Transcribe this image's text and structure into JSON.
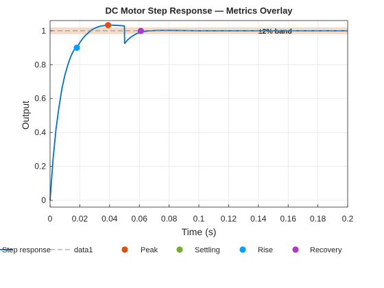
{
  "chart_data": {
    "type": "line",
    "title": "DC Motor Step Response — Metrics Overlay",
    "xlabel": "Time (s)",
    "ylabel": "Output",
    "xlim": [
      0,
      0.2
    ],
    "ylim": [
      -0.04,
      1.06
    ],
    "x_ticks": [
      0,
      0.02,
      0.04,
      0.06,
      0.08,
      0.1,
      0.12,
      0.14,
      0.16,
      0.18,
      0.2
    ],
    "x_tick_labels": [
      "0",
      "0.02",
      "0.04",
      "0.06",
      "0.08",
      "0.1",
      "0.12",
      "0.14",
      "0.16",
      "0.18",
      "0.2"
    ],
    "y_ticks": [
      0,
      0.2,
      0.4,
      0.6,
      0.8,
      1
    ],
    "y_tick_labels": [
      "0",
      "0.2",
      "0.4",
      "0.6",
      "0.8",
      "1"
    ],
    "grid": true,
    "legend_placement": "bottom",
    "band": {
      "label": "±2% band",
      "lower": 0.98,
      "upper": 1.02,
      "color": "#f2d3bf",
      "label_x": 0.14,
      "label_color": "#d95319"
    },
    "series": [
      {
        "name": "Step response",
        "color": "#0072bd",
        "style": "solid",
        "x": [
          0,
          0.002,
          0.004,
          0.006,
          0.008,
          0.01,
          0.012,
          0.014,
          0.016,
          0.018,
          0.02,
          0.022,
          0.024,
          0.026,
          0.028,
          0.03,
          0.032,
          0.034,
          0.036,
          0.038,
          0.04,
          0.042,
          0.044,
          0.046,
          0.048,
          0.05,
          0.0501,
          0.052,
          0.054,
          0.056,
          0.058,
          0.06,
          0.062,
          0.064,
          0.066,
          0.068,
          0.07,
          0.075,
          0.08,
          0.09,
          0.1,
          0.12,
          0.14,
          0.16,
          0.18,
          0.2
        ],
        "y": [
          0,
          0.24,
          0.42,
          0.55,
          0.66,
          0.74,
          0.8,
          0.85,
          0.885,
          0.9,
          0.93,
          0.955,
          0.975,
          0.99,
          1.005,
          1.015,
          1.022,
          1.027,
          1.03,
          1.032,
          1.033,
          1.033,
          1.032,
          1.031,
          1.03,
          1.028,
          0.925,
          0.945,
          0.96,
          0.972,
          0.982,
          0.989,
          0.994,
          0.997,
          0.999,
          1.0,
          1.001,
          1.002,
          1.002,
          1.001,
          1.0,
          1.0,
          1.0,
          1.0,
          1.0,
          1.0
        ]
      },
      {
        "name": "data1",
        "color": "#8c8c8c",
        "style": "dashed",
        "x": [
          0,
          0.2
        ],
        "y": [
          1,
          1
        ]
      }
    ],
    "markers": [
      {
        "name": "Peak",
        "color": "#d95319",
        "x": 0.039,
        "y": 1.033
      },
      {
        "name": "Settling",
        "color": "#77ac30",
        "x": null,
        "y": null
      },
      {
        "name": "Rise",
        "color": "#00a2ff",
        "x": 0.018,
        "y": 0.9
      },
      {
        "name": "Recovery",
        "color": "#a93cc9",
        "x": 0.061,
        "y": 0.999
      }
    ]
  }
}
